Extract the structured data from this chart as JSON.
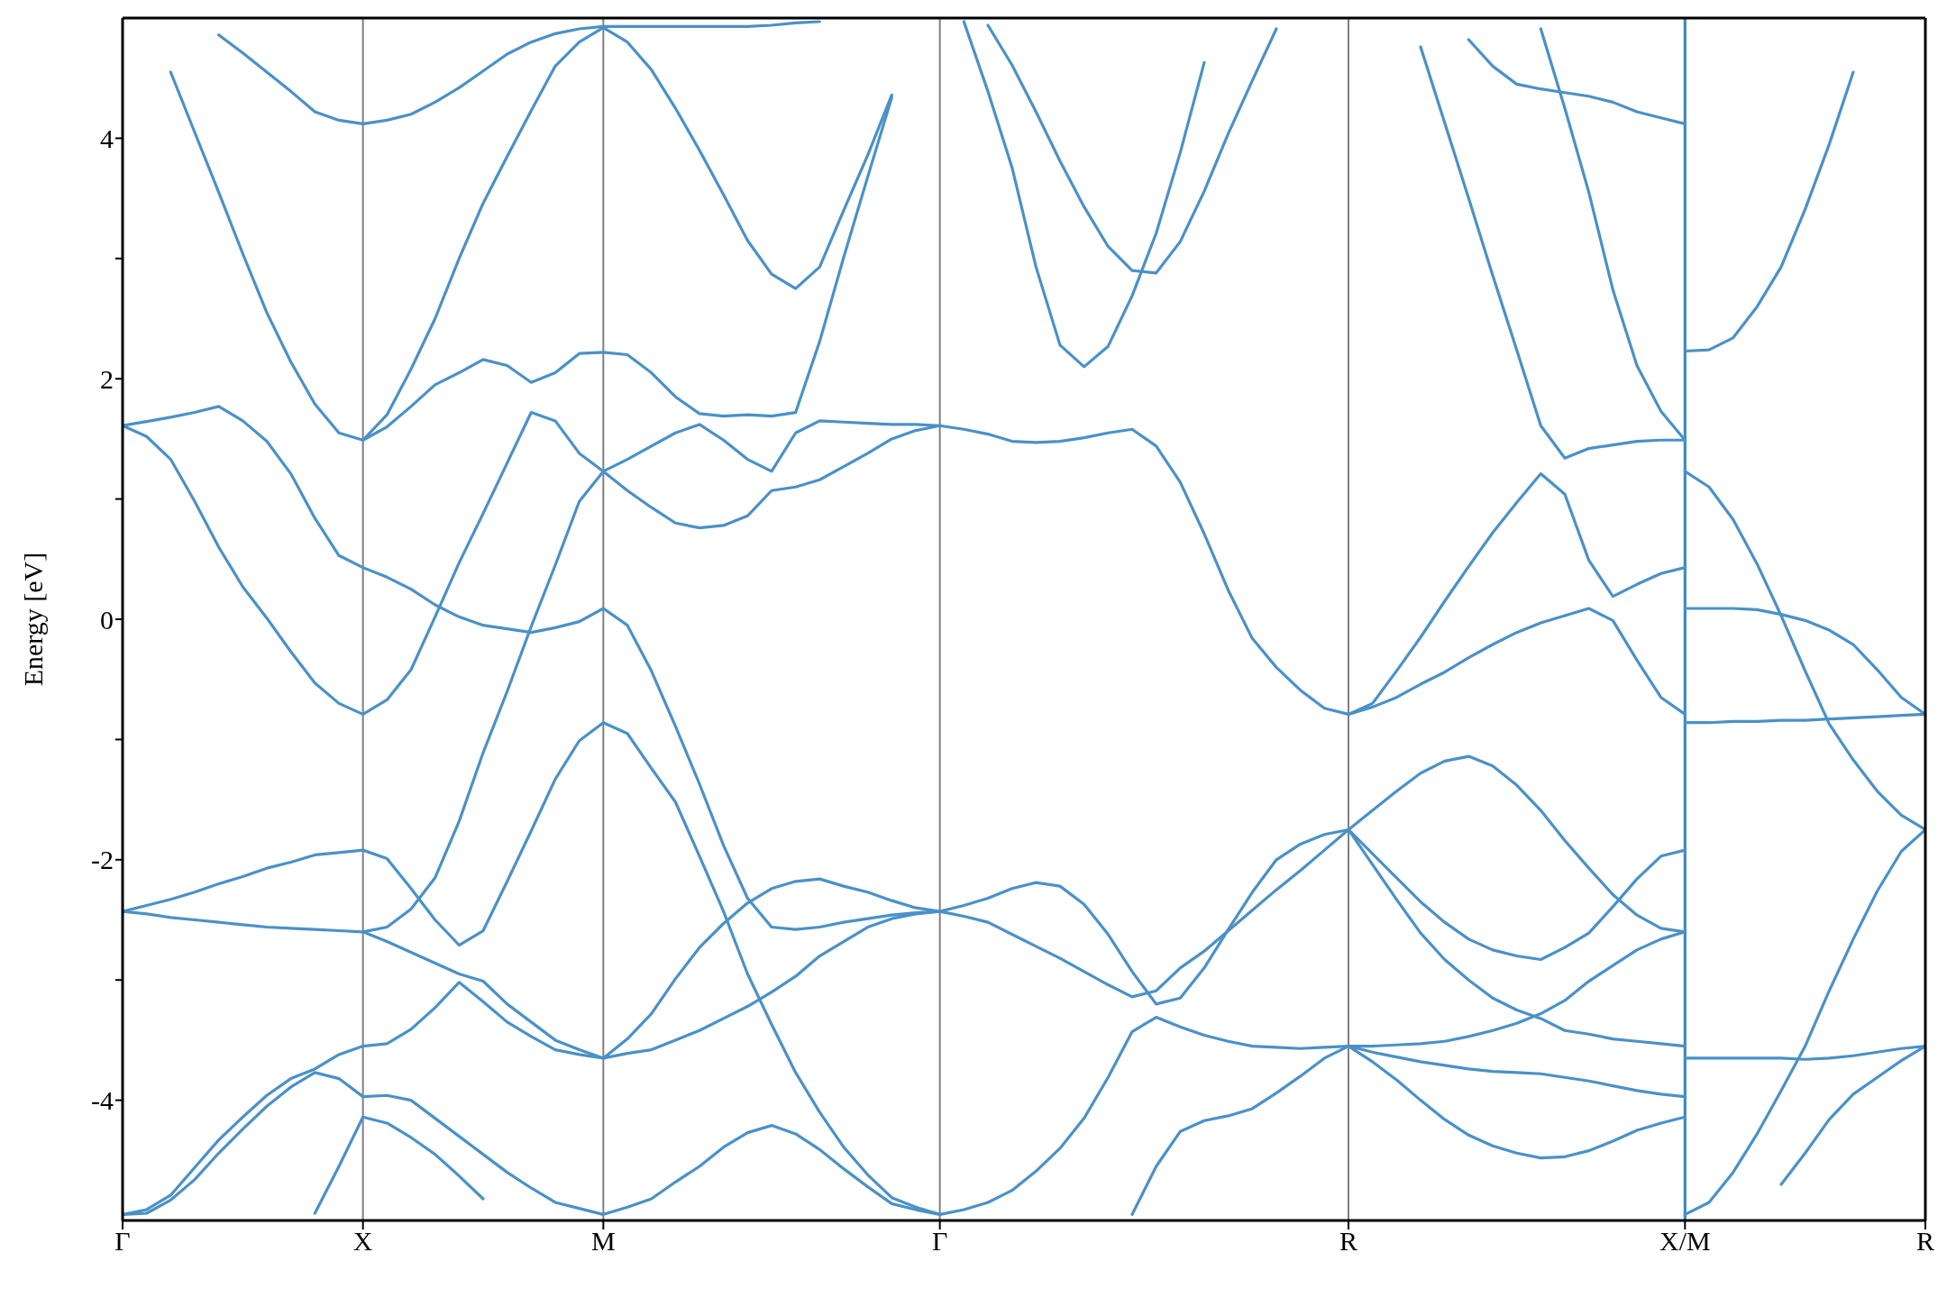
{
  "chart_data": {
    "type": "line",
    "ylabel": "Energy [eV]",
    "categories": [
      "Γ",
      null,
      null,
      null,
      null,
      null,
      null,
      null,
      null,
      null,
      "X",
      null,
      null,
      null,
      null,
      null,
      null,
      null,
      null,
      null,
      "M",
      null,
      null,
      null,
      null,
      null,
      null,
      null,
      null,
      null,
      null,
      null,
      null,
      null,
      "Γ",
      null,
      null,
      null,
      null,
      null,
      null,
      null,
      null,
      null,
      null,
      null,
      null,
      null,
      null,
      null,
      null,
      "R",
      null,
      null,
      null,
      null,
      null,
      null,
      null,
      null,
      null,
      null,
      null,
      null,
      null,
      "X/M",
      null,
      null,
      null,
      null,
      null,
      null,
      null,
      null,
      null,
      "R"
    ],
    "ylim": [
      -5,
      5
    ],
    "yticks": [
      -4,
      {
        "value": -3,
        "label": null
      },
      -2,
      {
        "value": -1,
        "label": null
      },
      0,
      {
        "value": 1,
        "label": null
      },
      2,
      {
        "value": 3,
        "label": null
      },
      4
    ],
    "grid": "x",
    "marker": "none",
    "ref_lines": [
      {
        "axis": "x",
        "value": "X/M",
        "color": "#3f8ac4"
      }
    ],
    "series": [
      {
        "color": "#4a91c7",
        "values": [
          null,
          null,
          4.55,
          4.05,
          3.55,
          3.04,
          2.55,
          2.14,
          1.79,
          1.55,
          1.49,
          1.7,
          2.08,
          2.5,
          3.0,
          3.46,
          3.85,
          4.23,
          4.6,
          4.8,
          4.92,
          4.8,
          4.57,
          4.25,
          3.9,
          3.53,
          3.15,
          2.87,
          2.75,
          2.93,
          3.4,
          3.86,
          4.36,
          null,
          null,
          null,
          null,
          null,
          null,
          null,
          null,
          null,
          null,
          null,
          null,
          null,
          null,
          null,
          null,
          null,
          null,
          null,
          null,
          null,
          null,
          null,
          null,
          null,
          null,
          null,
          null,
          null,
          null,
          null,
          null,
          null,
          null,
          null,
          null,
          null,
          null,
          null,
          null,
          null,
          null,
          null
        ]
      },
      {
        "color": "#4a91c7",
        "values": [
          null,
          null,
          null,
          null,
          4.86,
          4.71,
          4.55,
          4.39,
          4.22,
          4.15,
          4.12,
          4.15,
          4.2,
          4.3,
          4.42,
          4.56,
          4.7,
          4.8,
          4.87,
          4.91,
          4.93,
          4.93,
          4.93,
          4.93,
          4.93,
          4.93,
          4.93,
          4.94,
          4.96,
          4.97,
          null,
          null,
          null,
          null,
          null,
          null,
          null,
          null,
          null,
          null,
          null,
          null,
          null,
          null,
          null,
          null,
          null,
          null,
          null,
          null,
          null,
          null,
          null,
          null,
          null,
          null,
          null,
          null,
          null,
          null,
          null,
          null,
          null,
          null,
          null,
          null,
          null,
          null,
          null,
          null,
          null,
          null,
          null,
          null,
          null,
          null
        ]
      },
      {
        "color": "#4a91c7",
        "values": [
          1.61,
          1.645,
          1.68,
          1.72,
          1.77,
          1.65,
          1.48,
          1.21,
          0.84,
          0.53,
          0.43,
          0.35,
          0.25,
          0.12,
          0.02,
          -0.05,
          -0.08,
          -0.11,
          -0.07,
          -0.02,
          0.09,
          -0.05,
          -0.43,
          -0.89,
          -1.37,
          -1.88,
          -2.32,
          -2.56,
          -2.58,
          -2.56,
          -2.52,
          -2.49,
          -2.46,
          -2.44,
          -2.43,
          -2.38,
          -2.32,
          -2.24,
          -2.19,
          -2.22,
          -2.37,
          -2.62,
          -2.93,
          -3.2,
          -3.15,
          -2.9,
          -2.58,
          -2.27,
          -2.0,
          -1.87,
          -1.79,
          -1.75,
          -1.59,
          -1.43,
          -1.28,
          -1.18,
          -1.14,
          -1.22,
          -1.38,
          -1.59,
          -1.84,
          -2.07,
          -2.29,
          -2.46,
          -2.57,
          -2.6,
          null,
          null,
          null,
          null,
          null,
          null,
          null,
          null,
          null,
          null
        ]
      },
      {
        "color": "#4a91c7",
        "values": [
          null,
          null,
          null,
          null,
          null,
          null,
          null,
          null,
          null,
          null,
          null,
          null,
          null,
          null,
          null,
          null,
          null,
          null,
          null,
          null,
          null,
          null,
          null,
          null,
          null,
          null,
          null,
          null,
          null,
          null,
          null,
          null,
          null,
          null,
          null,
          null,
          null,
          null,
          null,
          null,
          null,
          null,
          null,
          null,
          null,
          null,
          null,
          null,
          null,
          null,
          null,
          null,
          null,
          null,
          null,
          null,
          null,
          null,
          null,
          null,
          null,
          null,
          null,
          null,
          null,
          1.23,
          1.1,
          0.83,
          0.46,
          0.03,
          -0.43,
          -0.87,
          -1.17,
          -1.43,
          -1.63,
          -1.75
        ]
      },
      {
        "color": "#4a91c7",
        "values": [
          null,
          null,
          null,
          null,
          null,
          null,
          null,
          null,
          null,
          null,
          1.49,
          1.6,
          1.77,
          1.95,
          2.05,
          2.16,
          2.11,
          1.97,
          2.05,
          2.21,
          2.22,
          2.2,
          2.05,
          1.85,
          1.71,
          1.69,
          1.7,
          1.69,
          1.72,
          2.31,
          3.01,
          3.68,
          4.34,
          null,
          null,
          null,
          null,
          null,
          null,
          null,
          null,
          null,
          null,
          null,
          null,
          null,
          null,
          null,
          null,
          null,
          null,
          null,
          null,
          null,
          null,
          null,
          null,
          null,
          null,
          null,
          null,
          null,
          null,
          null,
          null,
          null,
          null,
          null,
          null,
          null,
          null,
          null,
          null,
          null,
          null,
          null
        ]
      },
      {
        "color": "#4a91c7",
        "values": [
          1.61,
          1.52,
          1.33,
          0.98,
          0.6,
          0.27,
          0.01,
          -0.27,
          -0.53,
          -0.7,
          -0.79,
          -0.67,
          -0.42,
          0.02,
          0.47,
          0.88,
          1.3,
          1.72,
          1.65,
          1.38,
          1.23,
          1.33,
          1.44,
          1.55,
          1.62,
          1.49,
          1.33,
          1.23,
          1.55,
          1.65,
          1.64,
          1.63,
          1.62,
          1.62,
          1.61,
          1.58,
          1.54,
          1.48,
          1.47,
          1.48,
          1.51,
          1.55,
          1.58,
          1.44,
          1.14,
          0.71,
          0.24,
          -0.16,
          -0.4,
          -0.59,
          -0.74,
          -0.79,
          -0.7,
          -0.43,
          -0.15,
          0.15,
          0.44,
          0.72,
          0.97,
          1.21,
          1.04,
          0.49,
          0.19,
          0.29,
          0.38,
          0.43,
          null,
          null,
          null,
          null,
          null,
          null,
          null,
          null,
          null,
          null
        ]
      },
      {
        "color": "#4a91c7",
        "values": [
          -2.43,
          -2.45,
          -2.48,
          -2.5,
          -2.52,
          -2.54,
          -2.56,
          -2.57,
          -2.58,
          -2.59,
          -2.6,
          -2.56,
          -2.41,
          -2.15,
          -1.68,
          -1.11,
          -0.6,
          -0.06,
          0.45,
          0.98,
          1.23,
          1.07,
          0.93,
          0.8,
          0.76,
          0.78,
          0.86,
          1.07,
          1.1,
          1.16,
          1.27,
          1.38,
          1.5,
          1.57,
          1.61,
          null,
          null,
          null,
          null,
          null,
          null,
          null,
          null,
          null,
          null,
          null,
          null,
          null,
          null,
          null,
          null,
          null,
          null,
          null,
          null,
          null,
          null,
          null,
          null,
          null,
          null,
          null,
          null,
          null,
          null,
          null,
          null,
          null,
          null,
          null,
          null,
          null,
          null,
          null,
          null,
          null
        ]
      },
      {
        "color": "#4a91c7",
        "values": [
          -2.43,
          -2.38,
          -2.33,
          -2.27,
          -2.2,
          -2.14,
          -2.07,
          -2.02,
          -1.96,
          -1.94,
          -1.92,
          -1.99,
          -2.24,
          -2.5,
          -2.71,
          -2.59,
          -2.18,
          -1.76,
          -1.33,
          -1.01,
          -0.86,
          -0.95,
          -1.24,
          -1.52,
          -1.97,
          -2.43,
          -2.95,
          -3.37,
          -3.77,
          -4.1,
          -4.39,
          -4.62,
          -4.81,
          -4.89,
          -4.95,
          -4.91,
          -4.85,
          -4.75,
          -4.59,
          -4.4,
          -4.15,
          -3.81,
          -3.43,
          -3.31,
          -3.39,
          -3.46,
          -3.51,
          -3.55,
          -3.56,
          -3.57,
          -3.56,
          -3.55,
          -3.55,
          -3.54,
          -3.53,
          -3.51,
          -3.47,
          -3.42,
          -3.36,
          -3.28,
          -3.17,
          -3.01,
          -2.88,
          -2.75,
          -2.66,
          -2.6,
          null,
          null,
          null,
          null,
          null,
          null,
          null,
          null,
          null,
          null
        ]
      },
      {
        "color": "#4a91c7",
        "values": [
          null,
          null,
          null,
          null,
          null,
          null,
          null,
          null,
          null,
          null,
          -2.6,
          -2.68,
          -2.77,
          -2.86,
          -2.95,
          -3.01,
          -3.2,
          -3.35,
          -3.5,
          -3.58,
          -3.65,
          -3.61,
          -3.58,
          -3.5,
          -3.42,
          -3.32,
          -3.22,
          -3.1,
          -2.97,
          -2.8,
          -2.68,
          -2.56,
          -2.49,
          -2.45,
          -2.43,
          -2.47,
          -2.52,
          -2.62,
          -2.72,
          -2.82,
          -2.93,
          -3.04,
          -3.14,
          -3.09,
          -2.9,
          -2.76,
          -2.59,
          -2.42,
          -2.25,
          -2.09,
          -1.92,
          -1.75,
          -1.95,
          -2.15,
          -2.35,
          -2.52,
          -2.66,
          -2.75,
          -2.8,
          -2.83,
          -2.73,
          -2.61,
          -2.39,
          -2.16,
          -1.97,
          -1.92,
          null,
          null,
          null,
          null,
          null,
          null,
          null,
          null,
          null,
          null
        ]
      },
      {
        "color": "#4a91c7",
        "values": [
          null,
          null,
          null,
          null,
          null,
          null,
          null,
          null,
          null,
          null,
          null,
          null,
          null,
          null,
          null,
          null,
          null,
          null,
          null,
          null,
          null,
          null,
          null,
          null,
          null,
          null,
          null,
          null,
          null,
          null,
          null,
          null,
          null,
          null,
          null,
          null,
          null,
          null,
          null,
          null,
          null,
          null,
          null,
          null,
          null,
          null,
          null,
          null,
          null,
          null,
          null,
          null,
          null,
          null,
          null,
          null,
          null,
          null,
          null,
          null,
          null,
          null,
          null,
          null,
          null,
          -4.95,
          -4.85,
          -4.6,
          -4.28,
          -3.92,
          -3.55,
          -3.09,
          -2.66,
          -2.26,
          -1.93,
          -1.75
        ]
      },
      {
        "color": "#4a91c7",
        "values": [
          -4.95,
          -4.91,
          -4.79,
          -4.56,
          -4.33,
          -4.14,
          -3.96,
          -3.82,
          -3.74,
          -3.62,
          -3.55,
          -3.53,
          -3.41,
          -3.23,
          -3.02,
          -3.18,
          -3.35,
          -3.47,
          -3.58,
          -3.62,
          -3.65,
          -3.49,
          -3.28,
          -2.99,
          -2.73,
          -2.53,
          -2.36,
          -2.24,
          -2.18,
          -2.16,
          -2.22,
          -2.27,
          -2.34,
          -2.4,
          -2.43,
          null,
          null,
          null,
          null,
          null,
          null,
          null,
          null,
          null,
          null,
          null,
          null,
          null,
          null,
          null,
          null,
          null,
          null,
          null,
          null,
          null,
          null,
          null,
          null,
          null,
          null,
          null,
          null,
          null,
          null,
          null,
          null,
          null,
          null,
          null,
          null,
          null,
          null,
          null,
          null,
          null
        ]
      },
      {
        "color": "#4a91c7",
        "values": [
          -4.95,
          -4.94,
          -4.83,
          -4.66,
          -4.44,
          -4.24,
          -4.05,
          -3.89,
          -3.77,
          -3.82,
          -3.97,
          -3.96,
          -4.0,
          -4.15,
          -4.3,
          -4.45,
          -4.6,
          -4.73,
          -4.85,
          -4.9,
          -4.95,
          -4.89,
          -4.82,
          -4.68,
          -4.55,
          -4.39,
          -4.27,
          -4.21,
          -4.28,
          -4.41,
          -4.57,
          -4.72,
          -4.86,
          -4.91,
          -4.95,
          null,
          null,
          null,
          null,
          null,
          null,
          null,
          null,
          null,
          null,
          null,
          null,
          null,
          null,
          null,
          null,
          null,
          null,
          null,
          null,
          null,
          null,
          null,
          null,
          null,
          null,
          null,
          null,
          null,
          null,
          null,
          null,
          null,
          null,
          null,
          null,
          null,
          null,
          null,
          null,
          null
        ]
      },
      {
        "color": "#4a91c7",
        "values": [
          null,
          null,
          null,
          null,
          null,
          null,
          null,
          null,
          -4.94,
          -4.55,
          -4.14,
          -4.19,
          -4.31,
          -4.45,
          -4.63,
          -4.82,
          null,
          null,
          null,
          null,
          null,
          null,
          null,
          null,
          null,
          null,
          null,
          null,
          null,
          null,
          null,
          null,
          null,
          null,
          null,
          null,
          null,
          null,
          null,
          null,
          null,
          null,
          null,
          null,
          null,
          null,
          null,
          null,
          null,
          null,
          null,
          null,
          null,
          null,
          null,
          null,
          null,
          null,
          null,
          null,
          null,
          null,
          null,
          null,
          null,
          null,
          null,
          null,
          null,
          null,
          null,
          null,
          null,
          null,
          null,
          null
        ]
      },
      {
        "color": "#4a91c7",
        "values": [
          null,
          null,
          null,
          null,
          null,
          null,
          null,
          null,
          null,
          null,
          null,
          null,
          null,
          null,
          null,
          null,
          null,
          null,
          null,
          null,
          null,
          null,
          null,
          null,
          null,
          null,
          null,
          null,
          null,
          null,
          null,
          null,
          null,
          null,
          null,
          4.97,
          4.39,
          3.76,
          2.93,
          2.28,
          2.1,
          2.27,
          2.69,
          3.21,
          3.88,
          4.63,
          null,
          null,
          null,
          null,
          null,
          null,
          null,
          null,
          null,
          null,
          null,
          null,
          null,
          null,
          null,
          null,
          null,
          null,
          null,
          null,
          null,
          null,
          null,
          null,
          null,
          null,
          null,
          null,
          null,
          null
        ]
      },
      {
        "color": "#4a91c7",
        "values": [
          null,
          null,
          null,
          null,
          null,
          null,
          null,
          null,
          null,
          null,
          null,
          null,
          null,
          null,
          null,
          null,
          null,
          null,
          null,
          null,
          null,
          null,
          null,
          null,
          null,
          null,
          null,
          null,
          null,
          null,
          null,
          null,
          null,
          null,
          null,
          null,
          4.94,
          4.61,
          4.22,
          3.81,
          3.43,
          3.1,
          2.9,
          2.88,
          3.14,
          3.56,
          4.04,
          4.48,
          4.91,
          null,
          null,
          null,
          null,
          null,
          null,
          null,
          null,
          null,
          null,
          null,
          null,
          null,
          null,
          null,
          null,
          null,
          null,
          null,
          null,
          null,
          null,
          null,
          null,
          null,
          null,
          null
        ]
      },
      {
        "color": "#4a91c7",
        "values": [
          null,
          null,
          null,
          null,
          null,
          null,
          null,
          null,
          null,
          null,
          null,
          null,
          null,
          null,
          null,
          null,
          null,
          null,
          null,
          null,
          null,
          null,
          null,
          null,
          null,
          null,
          null,
          null,
          null,
          null,
          null,
          null,
          null,
          null,
          null,
          null,
          null,
          null,
          null,
          null,
          null,
          null,
          -4.95,
          -4.55,
          -4.26,
          -4.17,
          -4.13,
          -4.07,
          -3.94,
          -3.8,
          -3.65,
          -3.55,
          -3.6,
          -3.64,
          -3.68,
          -3.71,
          -3.74,
          -3.76,
          -3.77,
          -3.78,
          -3.81,
          -3.84,
          -3.88,
          -3.92,
          -3.95,
          -3.97,
          null,
          null,
          null,
          null,
          null,
          null,
          null,
          null,
          null,
          null
        ]
      },
      {
        "color": "#4a91c7",
        "values": [
          null,
          null,
          null,
          null,
          null,
          null,
          null,
          null,
          null,
          null,
          null,
          null,
          null,
          null,
          null,
          null,
          null,
          null,
          null,
          null,
          null,
          null,
          null,
          null,
          null,
          null,
          null,
          null,
          null,
          null,
          null,
          null,
          null,
          null,
          null,
          null,
          null,
          null,
          null,
          null,
          null,
          null,
          null,
          null,
          null,
          null,
          null,
          null,
          null,
          null,
          null,
          null,
          null,
          null,
          4.76,
          4.13,
          3.5,
          2.86,
          2.24,
          1.61,
          1.34,
          1.42,
          1.45,
          1.48,
          1.49,
          1.49,
          null,
          null,
          null,
          null,
          null,
          null,
          null,
          null,
          null,
          null
        ]
      },
      {
        "color": "#4a91c7",
        "values": [
          null,
          null,
          null,
          null,
          null,
          null,
          null,
          null,
          null,
          null,
          null,
          null,
          null,
          null,
          null,
          null,
          null,
          null,
          null,
          null,
          null,
          null,
          null,
          null,
          null,
          null,
          null,
          null,
          null,
          null,
          null,
          null,
          null,
          null,
          null,
          null,
          null,
          null,
          null,
          null,
          null,
          null,
          null,
          null,
          null,
          null,
          null,
          null,
          null,
          null,
          null,
          null,
          null,
          null,
          null,
          null,
          null,
          null,
          null,
          null,
          null,
          null,
          null,
          null,
          null,
          0.09,
          0.09,
          0.09,
          0.08,
          0.04,
          -0.01,
          -0.09,
          -0.21,
          -0.42,
          -0.65,
          -0.79
        ]
      },
      {
        "color": "#4a91c7",
        "values": [
          null,
          null,
          null,
          null,
          null,
          null,
          null,
          null,
          null,
          null,
          null,
          null,
          null,
          null,
          null,
          null,
          null,
          null,
          null,
          null,
          null,
          null,
          null,
          null,
          null,
          null,
          null,
          null,
          null,
          null,
          null,
          null,
          null,
          null,
          null,
          null,
          null,
          null,
          null,
          null,
          null,
          null,
          null,
          null,
          null,
          null,
          null,
          null,
          null,
          null,
          null,
          null,
          null,
          null,
          null,
          null,
          null,
          null,
          null,
          4.91,
          4.25,
          3.55,
          2.74,
          2.11,
          1.73,
          1.49,
          null,
          null,
          null,
          null,
          null,
          null,
          null,
          null,
          null,
          null
        ]
      },
      {
        "color": "#4a91c7",
        "values": [
          null,
          null,
          null,
          null,
          null,
          null,
          null,
          null,
          null,
          null,
          null,
          null,
          null,
          null,
          null,
          null,
          null,
          null,
          null,
          null,
          null,
          null,
          null,
          null,
          null,
          null,
          null,
          null,
          null,
          null,
          null,
          null,
          null,
          null,
          null,
          null,
          null,
          null,
          null,
          null,
          null,
          null,
          null,
          null,
          null,
          null,
          null,
          null,
          null,
          null,
          null,
          null,
          null,
          null,
          null,
          null,
          4.82,
          4.6,
          4.45,
          4.41,
          4.38,
          4.35,
          4.3,
          4.22,
          4.17,
          4.12,
          null,
          null,
          null,
          null,
          null,
          null,
          null,
          null,
          null,
          null
        ]
      },
      {
        "color": "#4a91c7",
        "values": [
          null,
          null,
          null,
          null,
          null,
          null,
          null,
          null,
          null,
          null,
          null,
          null,
          null,
          null,
          null,
          null,
          null,
          null,
          null,
          null,
          null,
          null,
          null,
          null,
          null,
          null,
          null,
          null,
          null,
          null,
          null,
          null,
          null,
          null,
          null,
          null,
          null,
          null,
          null,
          null,
          null,
          null,
          null,
          null,
          null,
          null,
          null,
          null,
          null,
          null,
          null,
          null,
          null,
          null,
          null,
          null,
          null,
          null,
          null,
          null,
          null,
          null,
          null,
          null,
          null,
          2.23,
          2.24,
          2.34,
          2.6,
          2.93,
          3.41,
          3.95,
          4.55,
          null,
          null,
          null
        ]
      },
      {
        "color": "#4a91c7",
        "values": [
          null,
          null,
          null,
          null,
          null,
          null,
          null,
          null,
          null,
          null,
          null,
          null,
          null,
          null,
          null,
          null,
          null,
          null,
          null,
          null,
          null,
          null,
          null,
          null,
          null,
          null,
          null,
          null,
          null,
          null,
          null,
          null,
          null,
          null,
          null,
          null,
          null,
          null,
          null,
          null,
          null,
          null,
          null,
          null,
          null,
          null,
          null,
          null,
          null,
          null,
          null,
          -0.79,
          -0.73,
          -0.65,
          -0.54,
          -0.44,
          -0.32,
          -0.21,
          -0.11,
          -0.03,
          0.03,
          0.09,
          -0.01,
          -0.34,
          -0.65,
          -0.79,
          null,
          null,
          null,
          null,
          null,
          null,
          null,
          null,
          null,
          null
        ]
      },
      {
        "color": "#4a91c7",
        "values": [
          null,
          null,
          null,
          null,
          null,
          null,
          null,
          null,
          null,
          null,
          null,
          null,
          null,
          null,
          null,
          null,
          null,
          null,
          null,
          null,
          null,
          null,
          null,
          null,
          null,
          null,
          null,
          null,
          null,
          null,
          null,
          null,
          null,
          null,
          null,
          null,
          null,
          null,
          null,
          null,
          null,
          null,
          null,
          null,
          null,
          null,
          null,
          null,
          null,
          null,
          null,
          null,
          null,
          null,
          null,
          null,
          null,
          null,
          null,
          null,
          null,
          null,
          null,
          null,
          null,
          -0.86,
          -0.86,
          -0.85,
          -0.85,
          -0.84,
          -0.84,
          -0.83,
          -0.82,
          -0.81,
          -0.8,
          -0.79
        ]
      },
      {
        "color": "#4a91c7",
        "values": [
          null,
          null,
          null,
          null,
          null,
          null,
          null,
          null,
          null,
          null,
          null,
          null,
          null,
          null,
          null,
          null,
          null,
          null,
          null,
          null,
          null,
          null,
          null,
          null,
          null,
          null,
          null,
          null,
          null,
          null,
          null,
          null,
          null,
          null,
          null,
          null,
          null,
          null,
          null,
          null,
          null,
          null,
          null,
          null,
          null,
          null,
          null,
          null,
          null,
          null,
          null,
          -1.75,
          -2.04,
          -2.33,
          -2.61,
          -2.83,
          -3.0,
          -3.15,
          -3.25,
          -3.32,
          -3.42,
          -3.45,
          -3.49,
          -3.51,
          -3.53,
          -3.55,
          null,
          null,
          null,
          null,
          null,
          null,
          null,
          null,
          null,
          null
        ]
      },
      {
        "color": "#4a91c7",
        "values": [
          null,
          null,
          null,
          null,
          null,
          null,
          null,
          null,
          null,
          null,
          null,
          null,
          null,
          null,
          null,
          null,
          null,
          null,
          null,
          null,
          null,
          null,
          null,
          null,
          null,
          null,
          null,
          null,
          null,
          null,
          null,
          null,
          null,
          null,
          null,
          null,
          null,
          null,
          null,
          null,
          null,
          null,
          null,
          null,
          null,
          null,
          null,
          null,
          null,
          null,
          null,
          null,
          null,
          null,
          null,
          null,
          null,
          null,
          null,
          null,
          null,
          null,
          null,
          null,
          null,
          -3.65,
          -3.65,
          -3.65,
          -3.65,
          -3.65,
          -3.66,
          -3.65,
          -3.63,
          -3.6,
          -3.57,
          -3.55
        ]
      },
      {
        "color": "#4a91c7",
        "values": [
          null,
          null,
          null,
          null,
          null,
          null,
          null,
          null,
          null,
          null,
          null,
          null,
          null,
          null,
          null,
          null,
          null,
          null,
          null,
          null,
          null,
          null,
          null,
          null,
          null,
          null,
          null,
          null,
          null,
          null,
          null,
          null,
          null,
          null,
          null,
          null,
          null,
          null,
          null,
          null,
          null,
          null,
          null,
          null,
          null,
          null,
          null,
          null,
          null,
          null,
          null,
          -3.55,
          -3.68,
          -3.83,
          -4.0,
          -4.16,
          -4.29,
          -4.38,
          -4.44,
          -4.48,
          -4.47,
          -4.42,
          -4.34,
          -4.25,
          -4.19,
          -4.14,
          null,
          null,
          null,
          null,
          null,
          null,
          null,
          null,
          null,
          null
        ]
      },
      {
        "color": "#4a91c7",
        "values": [
          null,
          null,
          null,
          null,
          null,
          null,
          null,
          null,
          null,
          null,
          null,
          null,
          null,
          null,
          null,
          null,
          null,
          null,
          null,
          null,
          null,
          null,
          null,
          null,
          null,
          null,
          null,
          null,
          null,
          null,
          null,
          null,
          null,
          null,
          null,
          null,
          null,
          null,
          null,
          null,
          null,
          null,
          null,
          null,
          null,
          null,
          null,
          null,
          null,
          null,
          null,
          null,
          null,
          null,
          null,
          null,
          null,
          null,
          null,
          null,
          null,
          null,
          null,
          null,
          null,
          null,
          null,
          null,
          null,
          -4.7,
          -4.44,
          -4.16,
          -3.95,
          -3.81,
          -3.67,
          -3.55
        ]
      }
    ]
  }
}
